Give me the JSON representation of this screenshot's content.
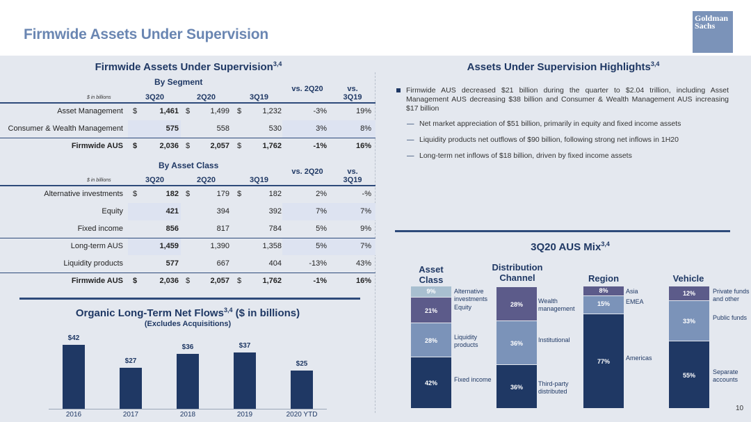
{
  "page": {
    "title": "Firmwide Assets Under Supervision",
    "logo_line1": "Goldman",
    "logo_line2": "Sachs",
    "page_number": "10"
  },
  "aus_table": {
    "title": "Firmwide Assets Under Supervision",
    "title_sup": "3,4",
    "units": "$ in billions",
    "columns": [
      "3Q20",
      "2Q20",
      "3Q19",
      "vs. 2Q20",
      "vs. 3Q19"
    ],
    "segment": {
      "header": "By Segment",
      "rows": [
        {
          "label": "Asset Management",
          "cur": "$",
          "q1": "1,461",
          "q2": "1,499",
          "q3": "1,232",
          "vs1": "-3%",
          "vs2": "19%"
        },
        {
          "label": "Consumer & Wealth Management",
          "cur": "",
          "q1": "575",
          "q2": "558",
          "q3": "530",
          "vs1": "3%",
          "vs2": "8%"
        },
        {
          "label": "Firmwide AUS",
          "cur": "$",
          "q1": "2,036",
          "q2": "2,057",
          "q3": "1,762",
          "vs1": "-1%",
          "vs2": "16%"
        }
      ]
    },
    "asset_class": {
      "header": "By Asset Class",
      "rows": [
        {
          "label": "Alternative investments",
          "cur": "$",
          "q1": "182",
          "q2": "179",
          "q3": "182",
          "vs1": "2%",
          "vs2": "-%"
        },
        {
          "label": "Equity",
          "cur": "",
          "q1": "421",
          "q2": "394",
          "q3": "392",
          "vs1": "7%",
          "vs2": "7%"
        },
        {
          "label": "Fixed income",
          "cur": "",
          "q1": "856",
          "q2": "817",
          "q3": "784",
          "vs1": "5%",
          "vs2": "9%"
        },
        {
          "label": "Long-term AUS",
          "cur": "",
          "q1": "1,459",
          "q2": "1,390",
          "q3": "1,358",
          "vs1": "5%",
          "vs2": "7%"
        },
        {
          "label": "Liquidity products",
          "cur": "",
          "q1": "577",
          "q2": "667",
          "q3": "404",
          "vs1": "-13%",
          "vs2": "43%"
        },
        {
          "label": "Firmwide AUS",
          "cur": "$",
          "q1": "2,036",
          "q2": "2,057",
          "q3": "1,762",
          "vs1": "-1%",
          "vs2": "16%"
        }
      ]
    }
  },
  "highlights": {
    "title": "Assets Under Supervision Highlights",
    "title_sup": "3,4",
    "main": "Firmwide AUS decreased $21 billion during the quarter to $2.04 trillion, including Asset Management AUS decreasing $38 billion and Consumer & Wealth Management AUS increasing $17 billion",
    "subs": [
      "Net market appreciation of $51 billion, primarily in equity and fixed income assets",
      "Liquidity products net outflows of $90 billion, following strong net inflows in 1H20",
      "Long-term net inflows of $18 billion, driven by fixed income assets"
    ]
  },
  "mix": {
    "title": "3Q20 AUS Mix",
    "title_sup": "3,4",
    "groups": [
      {
        "header": "Asset Class",
        "segments": [
          {
            "pct": "42%",
            "label": "Fixed income",
            "value": 42,
            "color": "#1f3864"
          },
          {
            "pct": "28%",
            "label": "Liquidity products",
            "value": 28,
            "color": "#7b93b9"
          },
          {
            "pct": "21%",
            "label": "Equity",
            "value": 21,
            "color": "#5c5b8a"
          },
          {
            "pct": "9%",
            "label": "Alternative investments",
            "value": 9,
            "color": "#a8bfd0"
          }
        ]
      },
      {
        "header": "Distribution Channel",
        "segments": [
          {
            "pct": "36%",
            "label": "Third-party distributed",
            "value": 36,
            "color": "#1f3864"
          },
          {
            "pct": "36%",
            "label": "Institutional",
            "value": 36,
            "color": "#7b93b9"
          },
          {
            "pct": "28%",
            "label": "Wealth management",
            "value": 28,
            "color": "#5c5b8a"
          }
        ]
      },
      {
        "header": "Region",
        "segments": [
          {
            "pct": "77%",
            "label": "Americas",
            "value": 77,
            "color": "#1f3864"
          },
          {
            "pct": "15%",
            "label": "EMEA",
            "value": 15,
            "color": "#7b93b9"
          },
          {
            "pct": "8%",
            "label": "Asia",
            "value": 8,
            "color": "#5c5b8a"
          }
        ]
      },
      {
        "header": "Vehicle",
        "segments": [
          {
            "pct": "55%",
            "label": "Separate accounts",
            "value": 55,
            "color": "#1f3864"
          },
          {
            "pct": "33%",
            "label": "Public funds",
            "value": 33,
            "color": "#7b93b9"
          },
          {
            "pct": "12%",
            "label": "Private funds and other",
            "value": 12,
            "color": "#5c5b8a"
          }
        ]
      }
    ]
  },
  "flows": {
    "title": "Organic Long-Term Net Flows",
    "title_sup": "3,4",
    "title_suffix": "($ in billions)",
    "subtitle": "(Excludes Acquisitions)"
  },
  "chart_data": {
    "type": "bar",
    "title": "Organic Long-Term Net Flows ($ in billions)",
    "subtitle": "(Excludes Acquisitions)",
    "categories": [
      "2016",
      "2017",
      "2018",
      "2019",
      "2020 YTD"
    ],
    "values": [
      42,
      27,
      36,
      37,
      25
    ],
    "value_labels": [
      "$42",
      "$27",
      "$36",
      "$37",
      "$25"
    ],
    "ylim": [
      0,
      42
    ],
    "grid": false,
    "bar_color": "#1f3864"
  }
}
